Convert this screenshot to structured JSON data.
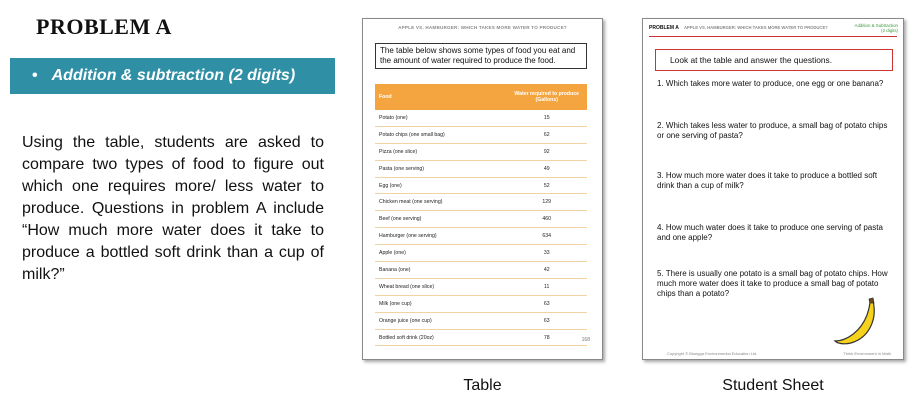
{
  "left": {
    "heading": "PROBLEM A",
    "banner_bullet": "•",
    "banner_text": "Addition & subtraction (2 digits)",
    "description": "Using the table,  students are asked to compare two types of food to figure out which one requires more/ less water to produce. Questions in problem A include “How much more water does it take to produce a bottled soft drink than a cup of milk?”"
  },
  "table_page": {
    "title": "APPLE VS. HAMBURGER: WHICH TAKES MORE WATER TO PRODUCE?",
    "intro": "The table below shows some types of food you eat and the amount of water required to produce the food.",
    "col_food": "Food",
    "col_water": "Water required to produce (Gallons)",
    "rows": [
      {
        "food": "Potato (one)",
        "water": "15"
      },
      {
        "food": "Potato chips  (one small bag)",
        "water": "62"
      },
      {
        "food": "Pizza (one slice)",
        "water": "92"
      },
      {
        "food": "Pasta (one serving)",
        "water": "49"
      },
      {
        "food": "Egg (one)",
        "water": "52"
      },
      {
        "food": "Chicken meat (one serving)",
        "water": "129"
      },
      {
        "food": "Beef (one serving)",
        "water": "460"
      },
      {
        "food": "Hamburger (one serving)",
        "water": "634"
      },
      {
        "food": "Apple (one)",
        "water": "33"
      },
      {
        "food": "Banana (one)",
        "water": "42"
      },
      {
        "food": "Wheat bread (one slice)",
        "water": "11"
      },
      {
        "food": "Milk (one cup)",
        "water": "63"
      },
      {
        "food": "Orange juice (one cup)",
        "water": "63"
      },
      {
        "food": "Bottled soft drink (20oz)",
        "water": "78"
      }
    ],
    "page_number": "168"
  },
  "sheet": {
    "label": "PROBLEM A",
    "subtitle": "APPLE VS. HAMBURGER: WHICH TAKES MORE WATER TO PRODUCE?",
    "tag_line1": "Addition & Subtraction",
    "tag_line2": "(2 digits)",
    "instruction": "Look at the table and answer the questions.",
    "questions": [
      "1. Which takes more water to produce, one egg or one banana?",
      "2. Which takes less water to produce, a small bag of potato chips or one serving of pasta?",
      "3. How much more water does it take to produce a bottled soft drink than a cup of milk?",
      "4. How much water does it take to produce one serving of pasta and one apple?",
      "5. There is usually one potato is a small bag of potato chips. How much more water does it take to produce a small bag of potato chips than a potato?"
    ],
    "footer_left": "Copyright © Bluegga Environmental Education Ltd.",
    "footer_right": "Think Environment in Math"
  },
  "captions": {
    "table": "Table",
    "sheet": "Student Sheet"
  },
  "colors": {
    "banner": "#2f8fa4",
    "table_header": "#f5a53f",
    "accent_red": "#cc3333",
    "banana": "#f6d21c"
  }
}
